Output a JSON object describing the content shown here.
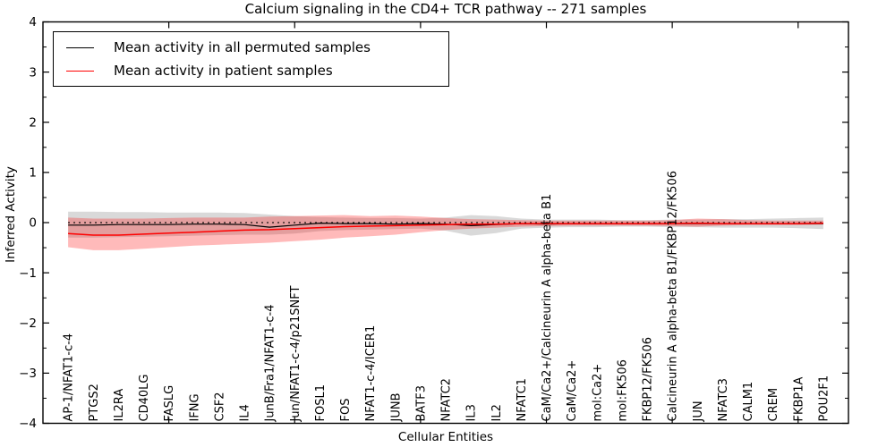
{
  "title": "Calcium signaling in the CD4+ TCR pathway -- 271 samples",
  "axes": {
    "xlabel": "Cellular Entities",
    "ylabel": "Inferred Activity",
    "ylim": [
      -4,
      4
    ],
    "y_tick_labels": [
      "4",
      "3",
      "2",
      "1",
      "0",
      "−1",
      "−2",
      "−3",
      "−4"
    ],
    "y_tick_values": [
      4,
      3,
      2,
      1,
      0,
      -1,
      -2,
      -3,
      -4
    ]
  },
  "legend": {
    "items": [
      {
        "label": "Mean activity in all permuted samples",
        "color": "#000000"
      },
      {
        "label": "Mean activity in patient samples",
        "color": "#ff0000"
      }
    ]
  },
  "colors": {
    "permuted_line": "#000000",
    "patient_line": "#ff0000",
    "permuted_band_fill": "rgba(0,0,0,0.15)",
    "patient_band_fill": "rgba(255,0,0,0.27)",
    "zero_line": "#000000"
  },
  "chart_data": {
    "type": "line",
    "title": "Calcium signaling in the CD4+ TCR pathway -- 271 samples",
    "xlabel": "Cellular Entities",
    "ylabel": "Inferred Activity",
    "ylim": [
      -4,
      4
    ],
    "xlim_units": [
      0,
      32
    ],
    "x_major_ticks_units": [
      5,
      10,
      15,
      20,
      25,
      30
    ],
    "grid": false,
    "legend_position": "upper left",
    "zero_reference_line": 0,
    "categories": [
      "AP-1/NFAT1-c-4",
      "PTGS2",
      "IL2RA",
      "CD40LG",
      "FASLG",
      "IFNG",
      "CSF2",
      "IL4",
      "JunB/Fra1/NFAT1-c-4",
      "Jun/NFAT1-c-4/p21SNFT",
      "FOSL1",
      "FOS",
      "NFAT1-c-4/ICER1",
      "JUNB",
      "BATF3",
      "NFATC2",
      "IL3",
      "IL2",
      "NFATC1",
      "CaM/Ca2+/Calcineurin A alpha-beta B1",
      "CaM/Ca2+",
      "mol:Ca2+",
      "mol:FK506",
      "FKBP12/FK506",
      "Calcineurin A alpha-beta B1/FKBP12/FK506",
      "JUN",
      "NFATC3",
      "CALM1",
      "CREM",
      "FKBP1A",
      "POU2F1"
    ],
    "series": [
      {
        "name": "Mean activity in all permuted samples",
        "color": "#000000",
        "values": [
          -0.05,
          -0.05,
          -0.04,
          -0.04,
          -0.04,
          -0.03,
          -0.03,
          -0.04,
          -0.09,
          -0.05,
          -0.01,
          -0.02,
          -0.02,
          -0.03,
          -0.02,
          -0.03,
          -0.06,
          -0.04,
          -0.02,
          -0.03,
          -0.02,
          -0.02,
          -0.02,
          -0.02,
          -0.02,
          -0.02,
          -0.02,
          -0.02,
          -0.02,
          -0.02,
          -0.02
        ]
      },
      {
        "name": "Mean activity in patient samples",
        "color": "#ff0000",
        "values": [
          -0.22,
          -0.25,
          -0.25,
          -0.23,
          -0.21,
          -0.19,
          -0.17,
          -0.15,
          -0.14,
          -0.12,
          -0.1,
          -0.08,
          -0.07,
          -0.06,
          -0.05,
          -0.04,
          -0.03,
          -0.03,
          -0.02,
          -0.02,
          -0.02,
          -0.02,
          -0.02,
          -0.02,
          -0.02,
          -0.01,
          -0.02,
          -0.02,
          -0.02,
          -0.02,
          -0.01
        ]
      }
    ],
    "bands": [
      {
        "name": "permuted-sample-range",
        "fill": "rgba(0,0,0,0.15)",
        "upper": [
          0.22,
          0.22,
          0.21,
          0.21,
          0.2,
          0.2,
          0.2,
          0.19,
          0.16,
          0.13,
          0.11,
          0.1,
          0.09,
          0.09,
          0.08,
          0.1,
          0.15,
          0.13,
          0.08,
          0.06,
          0.06,
          0.06,
          0.05,
          0.05,
          0.06,
          0.06,
          0.07,
          0.07,
          0.08,
          0.09,
          0.1
        ],
        "lower": [
          -0.3,
          -0.3,
          -0.29,
          -0.28,
          -0.27,
          -0.26,
          -0.25,
          -0.24,
          -0.24,
          -0.22,
          -0.17,
          -0.15,
          -0.14,
          -0.13,
          -0.12,
          -0.16,
          -0.26,
          -0.21,
          -0.12,
          -0.1,
          -0.09,
          -0.09,
          -0.08,
          -0.08,
          -0.09,
          -0.09,
          -0.1,
          -0.1,
          -0.1,
          -0.11,
          -0.13
        ]
      },
      {
        "name": "patient-sample-range",
        "fill": "rgba(255,0,0,0.27)",
        "upper": [
          0.1,
          0.08,
          0.08,
          0.08,
          0.09,
          0.1,
          0.1,
          0.1,
          0.12,
          0.13,
          0.14,
          0.15,
          0.13,
          0.14,
          0.12,
          0.09,
          0.07,
          0.06,
          0.05,
          0.04,
          0.04,
          0.04,
          0.04,
          0.04,
          0.05,
          0.08,
          0.07,
          0.05,
          0.04,
          0.04,
          0.04
        ],
        "lower": [
          -0.49,
          -0.55,
          -0.55,
          -0.52,
          -0.49,
          -0.46,
          -0.44,
          -0.42,
          -0.4,
          -0.37,
          -0.34,
          -0.3,
          -0.27,
          -0.24,
          -0.19,
          -0.15,
          -0.12,
          -0.1,
          -0.08,
          -0.07,
          -0.06,
          -0.06,
          -0.06,
          -0.06,
          -0.07,
          -0.08,
          -0.06,
          -0.05,
          -0.05,
          -0.05,
          -0.04
        ]
      }
    ]
  }
}
